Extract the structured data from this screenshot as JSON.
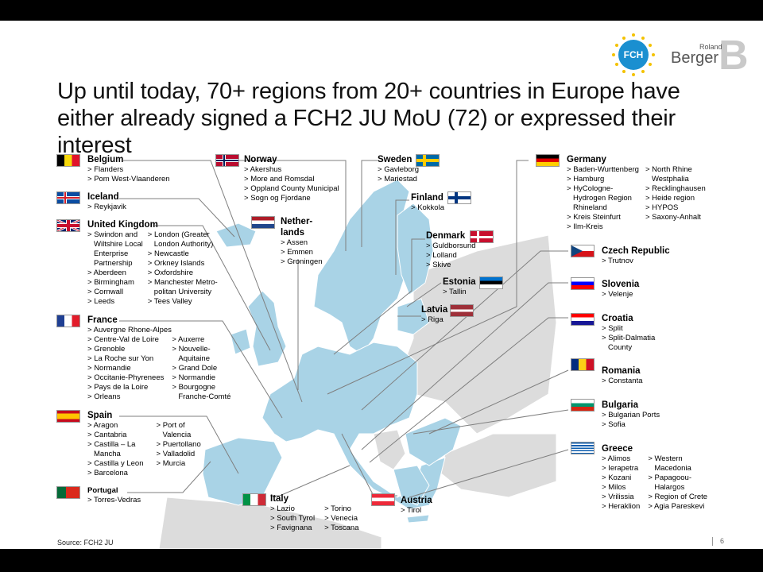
{
  "title": "Up until today, 70+ regions from 20+ countries in Europe have either already signed a FCH2 JU MoU (72) or expressed their interest",
  "logos": {
    "fch_text": "FCH",
    "rb_small": "Roland",
    "rb_big": "Berger",
    "rb_mark": "B"
  },
  "source": "Source: FCH2 JU",
  "page_number": "6",
  "colors": {
    "highlight": "#a9d3e6",
    "other": "#dcdcdc",
    "line": "#7f7f7f"
  },
  "countries": {
    "belgium": {
      "name": "Belgium",
      "regions": [
        "Flanders",
        "Pom West-Vlaanderen"
      ]
    },
    "iceland": {
      "name": "Iceland",
      "regions": [
        "Reykjavik"
      ]
    },
    "uk": {
      "name": "United Kingdom",
      "col1": [
        "Swindon and",
        "Wiltshire Local",
        "Enterprise",
        "Partnership",
        "Aberdeen",
        "Birmingham",
        "Cornwall",
        "Leeds"
      ],
      "col2": [
        "London (Greater",
        "London Authority)",
        "Newcastle",
        "Orkney Islands",
        "Oxfordshire",
        "Manchester Metro-",
        "politan University",
        "Tees Valley"
      ]
    },
    "france": {
      "name": "France",
      "top": "Auvergne Rhone-Alpes",
      "col1": [
        "Centre-Val de Loire",
        "Grenoble",
        "La Roche sur Yon",
        "Normandie",
        "Occitanie-Phyrenees",
        "Pays de la Loire",
        "Orleans"
      ],
      "col2": [
        "Auxerre",
        "Nouvelle-",
        "Aquitaine",
        "Grand Dole",
        "Normandie",
        "Bourgogne",
        "Franche-Comté"
      ]
    },
    "spain": {
      "name": "Spain",
      "col1": [
        "Aragon",
        "Cantabria",
        "Castilla – La",
        "Mancha",
        "Castilla y Leon",
        "Barcelona"
      ],
      "col2": [
        "Port of",
        "Valencia",
        "Puertollano",
        "Valladolid",
        "Murcia"
      ]
    },
    "portugal": {
      "name": "Portugal",
      "regions": [
        "Torres-Vedras"
      ]
    },
    "norway": {
      "name": "Norway",
      "regions": [
        "Akershus",
        "More and Romsdal",
        "Oppland County Municipal",
        "Sogn og Fjordane"
      ]
    },
    "netherlands": {
      "name1": "Nether-",
      "name2": "lands",
      "regions": [
        "Assen",
        "Emmen",
        "Groningen"
      ]
    },
    "sweden": {
      "name": "Sweden",
      "regions": [
        "Gavleborg",
        "Mariestad"
      ]
    },
    "finland": {
      "name": "Finland",
      "regions": [
        "Kokkola"
      ]
    },
    "denmark": {
      "name": "Denmark",
      "regions": [
        "Guldborsund",
        "Lolland",
        "Skive"
      ]
    },
    "estonia": {
      "name": "Estonia",
      "regions": [
        "Tallin"
      ]
    },
    "latvia": {
      "name": "Latvia",
      "regions": [
        "Riga"
      ]
    },
    "germany": {
      "name": "Germany",
      "col1": [
        "Baden-Wurttenberg",
        "Hamburg",
        "HyCologne-",
        "Hydrogen Region",
        "Rhineland",
        "Kreis Steinfurt",
        "Ilm-Kreis"
      ],
      "col2": [
        "North Rhine",
        "Westphalia",
        "Recklinghausen",
        "Heide region",
        "HYPOS",
        "Saxony-Anhalt"
      ]
    },
    "czech": {
      "name": "Czech Republic",
      "regions": [
        "Trutnov"
      ]
    },
    "slovenia": {
      "name": "Slovenia",
      "regions": [
        "Velenje"
      ]
    },
    "croatia": {
      "name": "Croatia",
      "regions": [
        "Split",
        "Split-Dalmatia",
        "County"
      ]
    },
    "romania": {
      "name": "Romania",
      "regions": [
        "Constanta"
      ]
    },
    "bulgaria": {
      "name": "Bulgaria",
      "regions": [
        "Bulgarian Ports",
        "Sofia"
      ]
    },
    "greece": {
      "name": "Greece",
      "col1": [
        "Alimos",
        "Ierapetra",
        "Kozani",
        "Milos",
        "Vrilissia",
        "Heraklion"
      ],
      "col2": [
        "Western",
        "Macedonia",
        "Papagoou-",
        "Halargos",
        "Region of Crete",
        "Agia Pareskevi"
      ]
    },
    "italy": {
      "name": "Italy",
      "col1": [
        "Lazio",
        "South Tyrol",
        "Favignana"
      ],
      "col2": [
        "Torino",
        "Venecia",
        "Toscana"
      ]
    },
    "austria": {
      "name": "Austria",
      "regions": [
        "Tirol"
      ]
    }
  }
}
